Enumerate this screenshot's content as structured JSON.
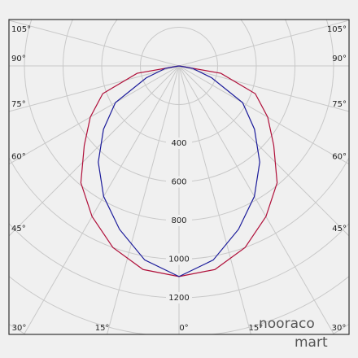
{
  "chart_data": {
    "type": "polar",
    "x": [
      0,
      10,
      20,
      30,
      40,
      50,
      60,
      70,
      80,
      90
    ],
    "series": [
      {
        "color": "#b0103a",
        "values": [
          1090,
          1070,
          1000,
          900,
          790,
          640,
          530,
          420,
          220,
          0
        ]
      },
      {
        "color": "#1a1a9a",
        "values": [
          1090,
          1020,
          900,
          780,
          650,
          510,
          380,
          180,
          70,
          0
        ]
      }
    ],
    "rlim": [
      0,
      1200
    ],
    "rticks": [
      {
        "value": 200,
        "label": null
      },
      400,
      600,
      800,
      1000,
      1200,
      {
        "value": 1400,
        "label": null
      },
      {
        "value": 1600,
        "label": null
      }
    ],
    "angle_ticks": [
      {
        "value": 0,
        "label": "0°"
      },
      {
        "value": 15,
        "label": "15°"
      },
      {
        "value": 30,
        "label": "30°"
      },
      {
        "value": 45,
        "label": "45°"
      },
      {
        "value": 60,
        "label": "60°"
      },
      {
        "value": 75,
        "label": "75°"
      },
      {
        "value": 90,
        "label": "90°"
      },
      {
        "value": 105,
        "label": "105°"
      }
    ],
    "grid": true
  },
  "watermark": {
    "top": "nooraco",
    "bottom": "mart"
  }
}
